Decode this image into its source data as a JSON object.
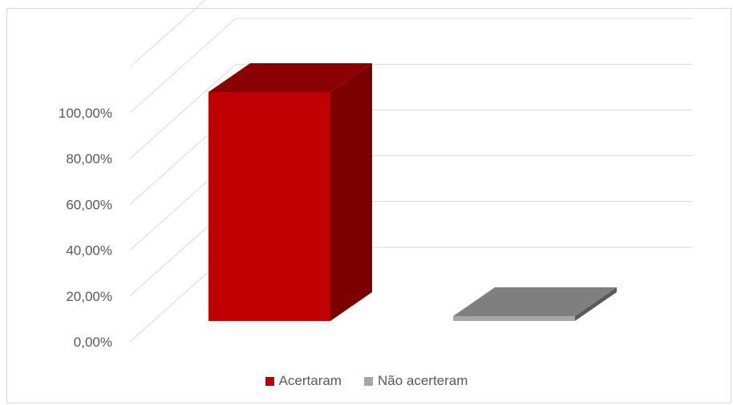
{
  "chart_data": {
    "type": "bar",
    "categories": [
      "Acertaram",
      "Não acerteram"
    ],
    "values": [
      1.0,
      0.0
    ],
    "y_ticks": [
      "0,00%",
      "20,00%",
      "40,00%",
      "60,00%",
      "80,00%",
      "100,00%"
    ],
    "ylim": [
      0,
      1.2
    ],
    "grid": true,
    "three_d": true,
    "legend_position": "bottom",
    "series": [
      {
        "name": "Acertaram",
        "value": 1.0,
        "color": "#c00000",
        "side_color": "#7b0000",
        "top_color": "#8b0000"
      },
      {
        "name": "Não acerteram",
        "value": 0.0,
        "color": "#a6a6a6",
        "side_color": "#595959",
        "top_color": "#7f7f7f"
      }
    ]
  },
  "legend": {
    "items": [
      {
        "label": "Acertaram",
        "color": "#c00000"
      },
      {
        "label": "Não acerteram",
        "color": "#a6a6a6"
      }
    ]
  }
}
